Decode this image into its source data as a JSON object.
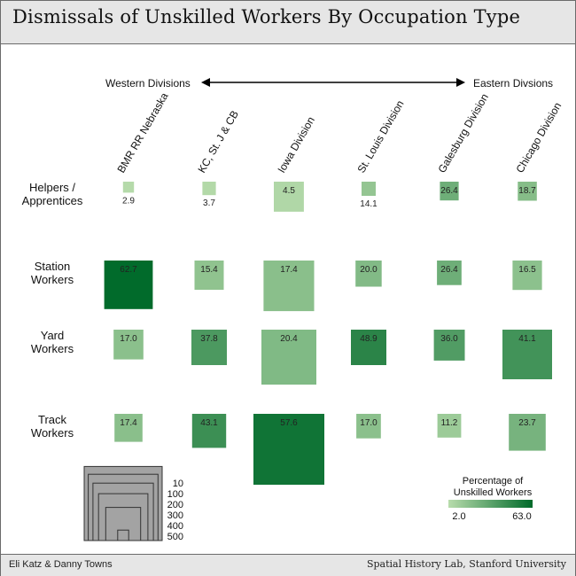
{
  "title": "Dismissals of Unskilled Workers By Occupation Type",
  "credits": {
    "left": "Eli Katz & Danny Towns",
    "right": "Spatial History Lab, Stanford University"
  },
  "direction": {
    "west": "Western Divisions",
    "east": "Eastern Divsions"
  },
  "chart_data": {
    "type": "heatmap",
    "columns": [
      "BMR RR Nebraska",
      "KC, St. J & CB",
      "Iowa Division",
      "St. Louis Division",
      "Galesburg Division",
      "Chicago Division"
    ],
    "rows": [
      {
        "label": [
          "Helpers /",
          "Apprentices"
        ],
        "values": [
          2.9,
          3.7,
          4.5,
          14.1,
          26.4,
          18.7
        ],
        "counts": [
          12,
          18,
          90,
          20,
          35,
          36
        ]
      },
      {
        "label": [
          "Station",
          "Workers"
        ],
        "values": [
          62.7,
          15.4,
          17.4,
          20.0,
          26.4,
          16.5
        ],
        "counts": [
          235,
          85,
          255,
          68,
          60,
          86
        ]
      },
      {
        "label": [
          "Yard",
          "Workers"
        ],
        "values": [
          17.0,
          37.8,
          20.4,
          48.9,
          36.0,
          41.1
        ],
        "counts": [
          88,
          125,
          300,
          125,
          95,
          245
        ]
      },
      {
        "label": [
          "Track",
          "Workers"
        ],
        "values": [
          17.4,
          43.1,
          57.6,
          17.0,
          11.2,
          23.7
        ],
        "counts": [
          78,
          115,
          500,
          60,
          56,
          135
        ]
      }
    ],
    "size_legend": {
      "values": [
        10,
        100,
        200,
        300,
        400,
        500
      ]
    },
    "color_legend": {
      "title": [
        "Percentage of",
        "Unskilled Workers"
      ],
      "min_label": "2.0",
      "max_label": "63.0",
      "min": 2.0,
      "max": 63.0
    },
    "colors": {
      "low": "#b8dcac",
      "high": "#006a2a"
    }
  }
}
